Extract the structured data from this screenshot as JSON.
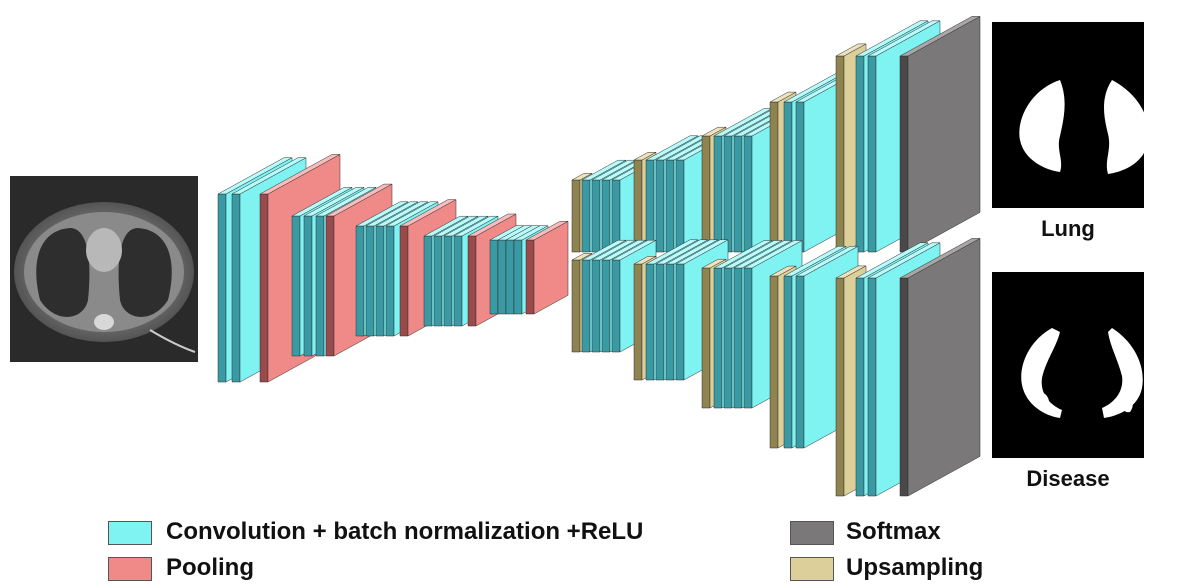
{
  "output_labels": {
    "lung": "Lung",
    "disease": "Disease"
  },
  "legend": {
    "conv": "Convolution + batch normalization +ReLU",
    "pooling": "Pooling",
    "softmax": "Softmax",
    "upsampling": "Upsampling"
  },
  "colors": {
    "conv_front": "#7ff2f2",
    "conv_side": "#3a9aa4",
    "conv_top": "#b8fbfb",
    "pool_front": "#f08a88",
    "pool_side": "#9a4a4a",
    "pool_top": "#f8bcbc",
    "up_front": "#dccf9a",
    "up_side": "#8f8450",
    "up_top": "#ece3be",
    "softmax_front": "#7a7878",
    "softmax_side": "#4a4848",
    "softmax_top": "#a8a6a6",
    "mask_bg": "#000000",
    "mask_fg": "#ffffff"
  }
}
